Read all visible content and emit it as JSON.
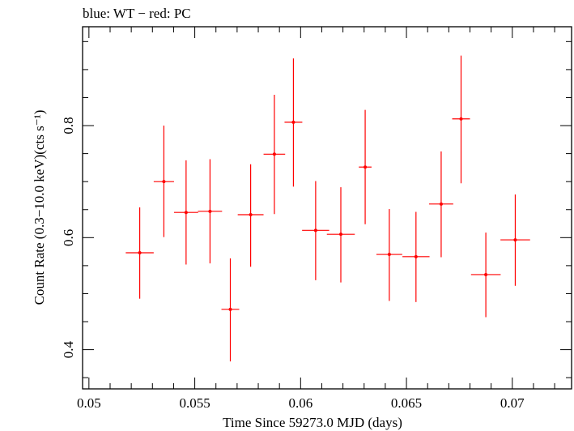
{
  "chart_data": {
    "type": "scatter",
    "title": "blue: WT − red: PC",
    "xlabel": "Time Since 59273.0 MJD (days)",
    "ylabel": "Count Rate (0.3−10.0 keV)(cts s⁻¹)",
    "xlim": [
      0.0497,
      0.0728
    ],
    "ylim": [
      0.33,
      0.9765
    ],
    "x_ticks": [
      0.05,
      0.055,
      0.06,
      0.065,
      0.07
    ],
    "x_tick_labels": [
      "0.05",
      "0.055",
      "0.06",
      "0.065",
      "0.07"
    ],
    "y_ticks": [
      0.4,
      0.6,
      0.8
    ],
    "y_tick_labels": [
      "0.4",
      "0.6",
      "0.8"
    ],
    "grid": false,
    "series": [
      {
        "color": "#ff0000",
        "points": [
          {
            "x": 0.0524,
            "y": 0.573,
            "xerr": 0.00066,
            "ylow": 0.491,
            "yhigh": 0.654
          },
          {
            "x": 0.05354,
            "y": 0.7,
            "xerr": 0.00048,
            "ylow": 0.601,
            "yhigh": 0.8
          },
          {
            "x": 0.05459,
            "y": 0.645,
            "xerr": 0.00057,
            "ylow": 0.552,
            "yhigh": 0.738
          },
          {
            "x": 0.05572,
            "y": 0.647,
            "xerr": 0.00057,
            "ylow": 0.554,
            "yhigh": 0.74
          },
          {
            "x": 0.05668,
            "y": 0.472,
            "xerr": 0.00042,
            "ylow": 0.379,
            "yhigh": 0.563
          },
          {
            "x": 0.05764,
            "y": 0.641,
            "xerr": 0.00061,
            "ylow": 0.548,
            "yhigh": 0.731
          },
          {
            "x": 0.05876,
            "y": 0.749,
            "xerr": 0.00051,
            "ylow": 0.642,
            "yhigh": 0.855
          },
          {
            "x": 0.05966,
            "y": 0.806,
            "xerr": 0.00042,
            "ylow": 0.691,
            "yhigh": 0.92
          },
          {
            "x": 0.06071,
            "y": 0.613,
            "xerr": 0.00064,
            "ylow": 0.524,
            "yhigh": 0.701
          },
          {
            "x": 0.0619,
            "y": 0.606,
            "xerr": 0.00066,
            "ylow": 0.52,
            "yhigh": 0.69
          },
          {
            "x": 0.06305,
            "y": 0.726,
            "xerr": 0.0003,
            "ylow": 0.624,
            "yhigh": 0.828
          },
          {
            "x": 0.06419,
            "y": 0.57,
            "xerr": 0.00061,
            "ylow": 0.487,
            "yhigh": 0.651
          },
          {
            "x": 0.06545,
            "y": 0.566,
            "xerr": 0.00064,
            "ylow": 0.485,
            "yhigh": 0.646
          },
          {
            "x": 0.06664,
            "y": 0.66,
            "xerr": 0.00057,
            "ylow": 0.565,
            "yhigh": 0.754
          },
          {
            "x": 0.06758,
            "y": 0.812,
            "xerr": 0.00042,
            "ylow": 0.697,
            "yhigh": 0.925
          },
          {
            "x": 0.06875,
            "y": 0.534,
            "xerr": 0.0007,
            "ylow": 0.458,
            "yhigh": 0.609
          },
          {
            "x": 0.07014,
            "y": 0.596,
            "xerr": 0.0007,
            "ylow": 0.514,
            "yhigh": 0.677
          }
        ]
      }
    ]
  }
}
